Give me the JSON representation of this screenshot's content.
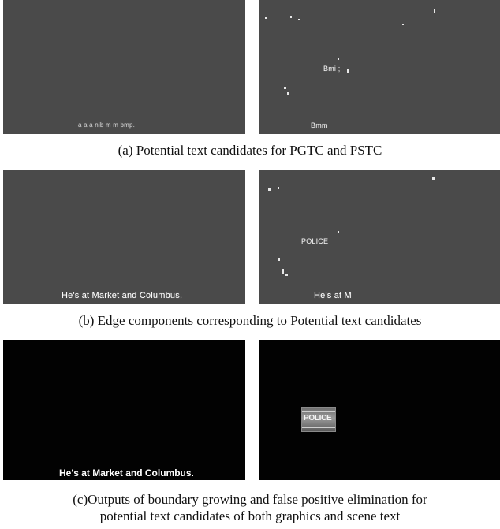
{
  "figure": {
    "row_a": {
      "caption": "(a) Potential text candidates for PGTC and PSTC",
      "left_panel_fragments": "a    a    a  nib       m  m  bmp.",
      "right_panel_fragments": [
        "Bmi  ;",
        "Bmm"
      ]
    },
    "row_b": {
      "caption": "(b) Edge components corresponding to Potential text candidates",
      "left_panel_text": "He's at Market and Columbus.",
      "right_panel_text": "He's at M",
      "right_panel_sign": "POLICE"
    },
    "row_c": {
      "caption_line1": "(c)Outputs of boundary growing and false positive elimination for",
      "caption_line2": "potential text candidates of both graphics and scene text",
      "left_panel_text": "He's at Market and Columbus.",
      "right_panel_sign": "POLICE"
    },
    "colors": {
      "edge_bg": "#4a4a4a",
      "output_bg": "#020202",
      "text": "#ffffff"
    }
  }
}
